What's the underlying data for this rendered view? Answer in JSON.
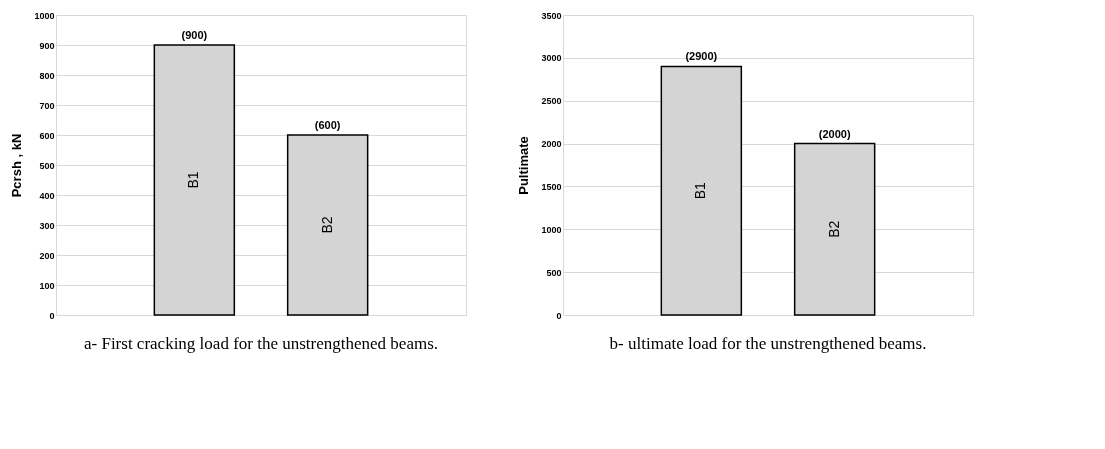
{
  "chart_data": [
    {
      "type": "bar",
      "title": "a-   First cracking load for the unstrengthened beams.",
      "ylabel": "Pcrsh , kN",
      "categories": [
        "B1",
        "B2"
      ],
      "values": [
        900,
        600
      ],
      "value_labels": [
        "(900)",
        "(600)"
      ],
      "color": "#d4d4d4",
      "ylim": [
        0,
        1000
      ],
      "yticks": [
        0,
        100,
        200,
        300,
        400,
        500,
        600,
        700,
        800,
        900,
        1000
      ],
      "grid": "y",
      "legend": false
    },
    {
      "type": "bar",
      "title": "b-   ultimate load for the unstrengthened beams.",
      "ylabel": "Pultimate",
      "categories": [
        "B1",
        "B2"
      ],
      "values": [
        2900,
        2000
      ],
      "value_labels": [
        "(2900)",
        "(2000)"
      ],
      "color": "#d4d4d4",
      "ylim": [
        0,
        3500
      ],
      "yticks": [
        0,
        500,
        1000,
        1500,
        2000,
        2500,
        3000,
        3500
      ],
      "grid": "y",
      "legend": false
    }
  ]
}
